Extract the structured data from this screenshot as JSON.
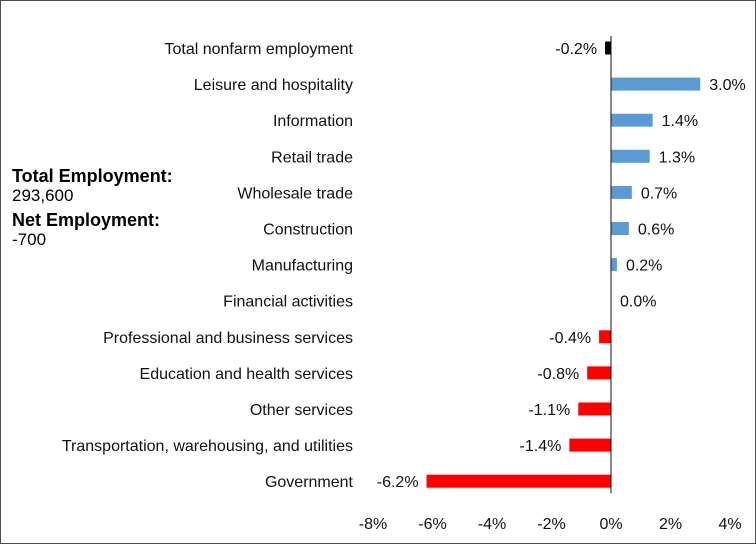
{
  "annotations": {
    "total_label": "Total Employment:",
    "total_value": "293,600",
    "net_label": "Net Employment:",
    "net_value": "-700"
  },
  "chart_data": {
    "type": "bar",
    "orientation": "horizontal",
    "title": "",
    "xlabel": "",
    "ylabel": "",
    "xlim": [
      -8,
      4
    ],
    "xticks": [
      "-8%",
      "-6%",
      "-4%",
      "-2%",
      "0%",
      "2%",
      "4%"
    ],
    "grid": false,
    "legend": "none",
    "categories": [
      "Total nonfarm employment",
      "Leisure and hospitality",
      "Information",
      "Retail trade",
      "Wholesale trade",
      "Construction",
      "Manufacturing",
      "Financial activities",
      "Professional and business services",
      "Education and health services",
      "Other services",
      "Transportation, warehousing, and utilities",
      "Government"
    ],
    "values": [
      -0.2,
      3.0,
      1.4,
      1.3,
      0.7,
      0.6,
      0.2,
      0.0,
      -0.4,
      -0.8,
      -1.1,
      -1.4,
      -6.2
    ],
    "value_labels": [
      "-0.2%",
      "3.0%",
      "1.4%",
      "1.3%",
      "0.7%",
      "0.6%",
      "0.2%",
      "0.0%",
      "-0.4%",
      "-0.8%",
      "-1.1%",
      "-1.4%",
      "-6.2%"
    ],
    "colors": {
      "total": "#000000",
      "positive": "#5b9bd5",
      "negative": "#ff0000"
    }
  }
}
